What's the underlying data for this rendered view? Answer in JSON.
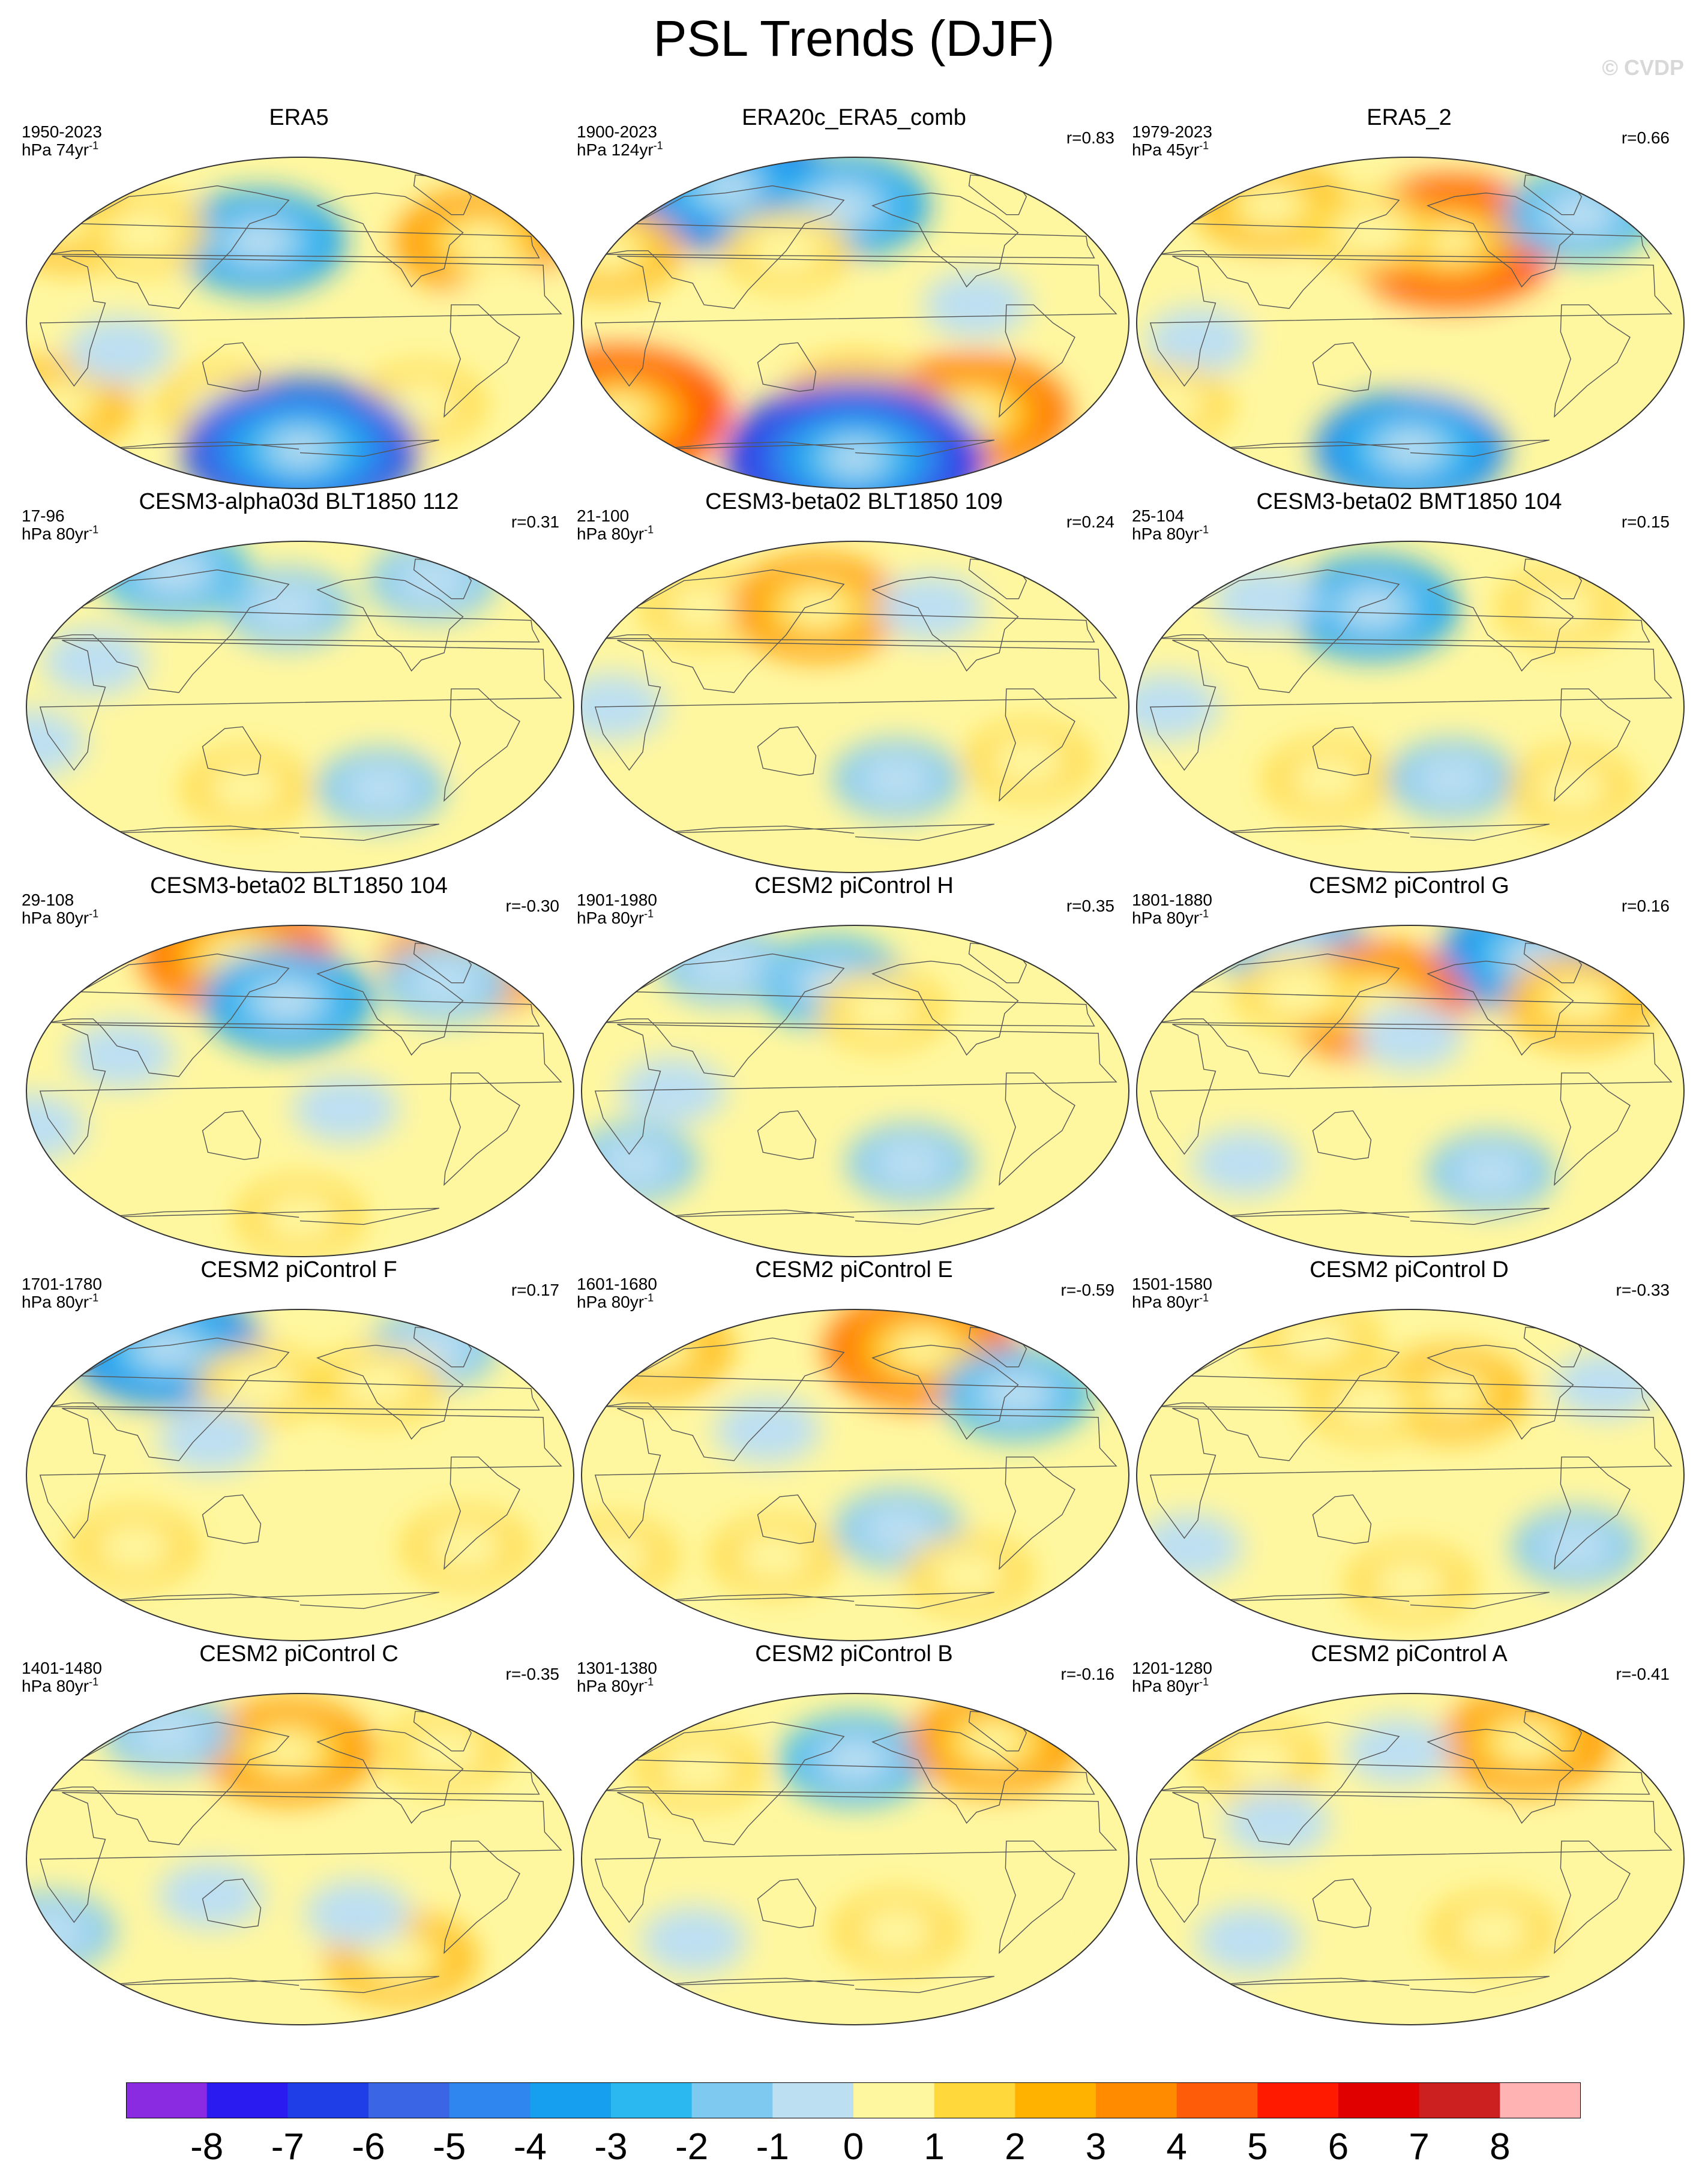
{
  "title": "PSL Trends (DJF)",
  "watermark": "© CVDP",
  "chart_data": {
    "type": "contour-map-grid",
    "projection": "Robinson-style global, Pacific-centered",
    "colorbar": {
      "levels": [
        -8,
        -7,
        -6,
        -5,
        -4,
        -3,
        -2,
        -1,
        0,
        1,
        2,
        3,
        4,
        5,
        6,
        7,
        8
      ],
      "colors": [
        "#8a2be2",
        "#2a1cf0",
        "#1f3ee8",
        "#3a66e6",
        "#2f86ee",
        "#179fef",
        "#2bb8f0",
        "#7ec9ef",
        "#bcdff2",
        "#fff7a0",
        "#ffd93c",
        "#ffb300",
        "#ff8c00",
        "#ff5c0a",
        "#ff1a00",
        "#e00000",
        "#cc1f1f",
        "#ffb3b3"
      ]
    },
    "panels": [
      {
        "title": "ERA5",
        "period": "1950-2023",
        "units_base": "hPa 74yr",
        "units_exp": "-1",
        "r": ""
      },
      {
        "title": "ERA20c_ERA5_comb",
        "period": "1900-2023",
        "units_base": "hPa 124yr",
        "units_exp": "-1",
        "r": "r=0.83"
      },
      {
        "title": "ERA5_2",
        "period": "1979-2023",
        "units_base": "hPa 45yr",
        "units_exp": "-1",
        "r": "r=0.66"
      },
      {
        "title": "CESM3-alpha03d BLT1850 112",
        "period": "17-96",
        "units_base": "hPa 80yr",
        "units_exp": "-1",
        "r": "r=0.31"
      },
      {
        "title": "CESM3-beta02 BLT1850 109",
        "period": "21-100",
        "units_base": "hPa 80yr",
        "units_exp": "-1",
        "r": "r=0.24"
      },
      {
        "title": "CESM3-beta02 BMT1850 104",
        "period": "25-104",
        "units_base": "hPa 80yr",
        "units_exp": "-1",
        "r": "r=0.15"
      },
      {
        "title": "CESM3-beta02 BLT1850 104",
        "period": "29-108",
        "units_base": "hPa 80yr",
        "units_exp": "-1",
        "r": "r=-0.30"
      },
      {
        "title": "CESM2 piControl H",
        "period": "1901-1980",
        "units_base": "hPa 80yr",
        "units_exp": "-1",
        "r": "r=0.35"
      },
      {
        "title": "CESM2 piControl G",
        "period": "1801-1880",
        "units_base": "hPa 80yr",
        "units_exp": "-1",
        "r": "r=0.16"
      },
      {
        "title": "CESM2 piControl F",
        "period": "1701-1780",
        "units_base": "hPa 80yr",
        "units_exp": "-1",
        "r": "r=0.17"
      },
      {
        "title": "CESM2 piControl E",
        "period": "1601-1680",
        "units_base": "hPa 80yr",
        "units_exp": "-1",
        "r": "r=-0.59"
      },
      {
        "title": "CESM2 piControl D",
        "period": "1501-1580",
        "units_base": "hPa 80yr",
        "units_exp": "-1",
        "r": "r=-0.33"
      },
      {
        "title": "CESM2 piControl C",
        "period": "1401-1480",
        "units_base": "hPa 80yr",
        "units_exp": "-1",
        "r": "r=-0.35"
      },
      {
        "title": "CESM2 piControl B",
        "period": "1301-1380",
        "units_base": "hPa 80yr",
        "units_exp": "-1",
        "r": "r=-0.16"
      },
      {
        "title": "CESM2 piControl A",
        "period": "1201-1280",
        "units_base": "hPa 80yr",
        "units_exp": "-1",
        "r": "r=-0.41"
      }
    ],
    "anomalies": [
      [
        {
          "lon": 150,
          "lat": 45,
          "v": -4
        },
        {
          "lon": 0,
          "lat": 55,
          "v": 3
        },
        {
          "lon": -45,
          "lat": 45,
          "v": 4
        },
        {
          "lon": 60,
          "lat": 50,
          "v": 2
        },
        {
          "lon": -40,
          "lat": 15,
          "v": 1
        },
        {
          "lon": 0,
          "lat": -45,
          "v": 3
        },
        {
          "lon": 120,
          "lat": -45,
          "v": 2
        },
        {
          "lon": -90,
          "lat": -45,
          "v": 2
        },
        {
          "lon": 60,
          "lat": -15,
          "v": -1
        },
        {
          "lon": 180,
          "lat": -70,
          "v": -7
        }
      ],
      [
        {
          "lon": 60,
          "lat": 75,
          "v": -6
        },
        {
          "lon": 170,
          "lat": 65,
          "v": -4
        },
        {
          "lon": 0,
          "lat": 40,
          "v": 3
        },
        {
          "lon": 130,
          "lat": 40,
          "v": 2
        },
        {
          "lon": -90,
          "lat": -50,
          "v": 5
        },
        {
          "lon": 0,
          "lat": -50,
          "v": 6
        },
        {
          "lon": 180,
          "lat": -45,
          "v": 3
        },
        {
          "lon": -100,
          "lat": 10,
          "v": -1
        },
        {
          "lon": 180,
          "lat": -75,
          "v": -8
        }
      ],
      [
        {
          "lon": 60,
          "lat": 65,
          "v": 3
        },
        {
          "lon": -150,
          "lat": 45,
          "v": 6
        },
        {
          "lon": 150,
          "lat": 50,
          "v": 2
        },
        {
          "lon": -40,
          "lat": 60,
          "v": -3
        },
        {
          "lon": 100,
          "lat": 10,
          "v": 1
        },
        {
          "lon": 40,
          "lat": -10,
          "v": -1
        },
        {
          "lon": 0,
          "lat": -45,
          "v": 2
        },
        {
          "lon": -150,
          "lat": -45,
          "v": 1
        },
        {
          "lon": 180,
          "lat": -70,
          "v": -5
        }
      ],
      [
        {
          "lon": 60,
          "lat": 75,
          "v": -3
        },
        {
          "lon": 170,
          "lat": 55,
          "v": -2
        },
        {
          "lon": -60,
          "lat": 70,
          "v": -2
        },
        {
          "lon": 40,
          "lat": 25,
          "v": -1
        },
        {
          "lon": 140,
          "lat": -45,
          "v": 2
        },
        {
          "lon": -120,
          "lat": -45,
          "v": -2
        },
        {
          "lon": -60,
          "lat": -15,
          "v": 1
        },
        {
          "lon": 0,
          "lat": -20,
          "v": -1
        }
      ],
      [
        {
          "lon": 60,
          "lat": 55,
          "v": 2
        },
        {
          "lon": 150,
          "lat": 55,
          "v": 4
        },
        {
          "lon": -120,
          "lat": 55,
          "v": -1
        },
        {
          "lon": -150,
          "lat": -40,
          "v": -2
        },
        {
          "lon": -60,
          "lat": -30,
          "v": 2
        },
        {
          "lon": 20,
          "lat": 0,
          "v": -1
        }
      ],
      [
        {
          "lon": 150,
          "lat": 55,
          "v": -4
        },
        {
          "lon": 60,
          "lat": 60,
          "v": -1
        },
        {
          "lon": -60,
          "lat": 55,
          "v": 2
        },
        {
          "lon": 120,
          "lat": -40,
          "v": 2
        },
        {
          "lon": -150,
          "lat": -40,
          "v": -2
        },
        {
          "lon": -60,
          "lat": -45,
          "v": 2
        },
        {
          "lon": 20,
          "lat": 0,
          "v": -1
        }
      ],
      [
        {
          "lon": 120,
          "lat": 75,
          "v": 5
        },
        {
          "lon": -30,
          "lat": 70,
          "v": 4
        },
        {
          "lon": 170,
          "lat": 50,
          "v": -4
        },
        {
          "lon": -60,
          "lat": 60,
          "v": -2
        },
        {
          "lon": 60,
          "lat": 20,
          "v": -1
        },
        {
          "lon": -150,
          "lat": -10,
          "v": -1
        },
        {
          "lon": 0,
          "lat": -20,
          "v": -1
        },
        {
          "lon": 180,
          "lat": -70,
          "v": 2
        }
      ],
      [
        {
          "lon": 160,
          "lat": 60,
          "v": -3
        },
        {
          "lon": 60,
          "lat": 70,
          "v": -2
        },
        {
          "lon": -160,
          "lat": 45,
          "v": 2
        },
        {
          "lon": 60,
          "lat": 0,
          "v": -1
        },
        {
          "lon": -140,
          "lat": -40,
          "v": -2
        },
        {
          "lon": 20,
          "lat": -40,
          "v": -2
        },
        {
          "lon": -40,
          "lat": 20,
          "v": 1
        }
      ],
      [
        {
          "lon": 60,
          "lat": 80,
          "v": -3
        },
        {
          "lon": -60,
          "lat": 75,
          "v": -5
        },
        {
          "lon": 150,
          "lat": 50,
          "v": 5
        },
        {
          "lon": 90,
          "lat": 55,
          "v": 2
        },
        {
          "lon": -50,
          "lat": 50,
          "v": 3
        },
        {
          "lon": 180,
          "lat": 30,
          "v": -1
        },
        {
          "lon": -120,
          "lat": -45,
          "v": -2
        },
        {
          "lon": 60,
          "lat": -40,
          "v": -1
        }
      ],
      [
        {
          "lon": 60,
          "lat": 70,
          "v": -5
        },
        {
          "lon": -60,
          "lat": 70,
          "v": -2
        },
        {
          "lon": 150,
          "lat": 50,
          "v": 2
        },
        {
          "lon": -120,
          "lat": 50,
          "v": 2
        },
        {
          "lon": 120,
          "lat": 20,
          "v": -1
        },
        {
          "lon": -60,
          "lat": -40,
          "v": 2
        },
        {
          "lon": 60,
          "lat": -40,
          "v": 2
        }
      ],
      [
        {
          "lon": 0,
          "lat": 70,
          "v": 3
        },
        {
          "lon": -120,
          "lat": 70,
          "v": 5
        },
        {
          "lon": -60,
          "lat": 45,
          "v": -3
        },
        {
          "lon": 120,
          "lat": 25,
          "v": -1
        },
        {
          "lon": -150,
          "lat": -30,
          "v": -2
        },
        {
          "lon": 0,
          "lat": -45,
          "v": 2
        },
        {
          "lon": 120,
          "lat": -45,
          "v": 2
        },
        {
          "lon": -90,
          "lat": -55,
          "v": 2
        }
      ],
      [
        {
          "lon": 90,
          "lat": 75,
          "v": 2
        },
        {
          "lon": -150,
          "lat": 45,
          "v": 3
        },
        {
          "lon": -30,
          "lat": 50,
          "v": -1
        },
        {
          "lon": 150,
          "lat": 40,
          "v": 2
        },
        {
          "lon": 20,
          "lat": -40,
          "v": -1
        },
        {
          "lon": -60,
          "lat": -40,
          "v": -2
        },
        {
          "lon": 180,
          "lat": -60,
          "v": 2
        }
      ],
      [
        {
          "lon": 170,
          "lat": 60,
          "v": 4
        },
        {
          "lon": 60,
          "lat": 70,
          "v": -2
        },
        {
          "lon": -60,
          "lat": 60,
          "v": 2
        },
        {
          "lon": 0,
          "lat": -40,
          "v": -2
        },
        {
          "lon": -100,
          "lat": -55,
          "v": 3
        },
        {
          "lon": 120,
          "lat": -20,
          "v": -1
        },
        {
          "lon": -140,
          "lat": -30,
          "v": -1
        }
      ],
      [
        {
          "lon": 180,
          "lat": 55,
          "v": -3
        },
        {
          "lon": -60,
          "lat": 65,
          "v": 4
        },
        {
          "lon": 60,
          "lat": 50,
          "v": 2
        },
        {
          "lon": -150,
          "lat": -40,
          "v": 2
        },
        {
          "lon": 60,
          "lat": -45,
          "v": -1
        },
        {
          "lon": -30,
          "lat": -40,
          "v": 1
        }
      ],
      [
        {
          "lon": -80,
          "lat": 65,
          "v": 4
        },
        {
          "lon": 60,
          "lat": 55,
          "v": 2
        },
        {
          "lon": 170,
          "lat": 60,
          "v": -1
        },
        {
          "lon": 90,
          "lat": 20,
          "v": -1
        },
        {
          "lon": -120,
          "lat": -40,
          "v": 2
        },
        {
          "lon": 60,
          "lat": -45,
          "v": -1
        },
        {
          "lon": -30,
          "lat": -50,
          "v": 1
        }
      ]
    ]
  }
}
